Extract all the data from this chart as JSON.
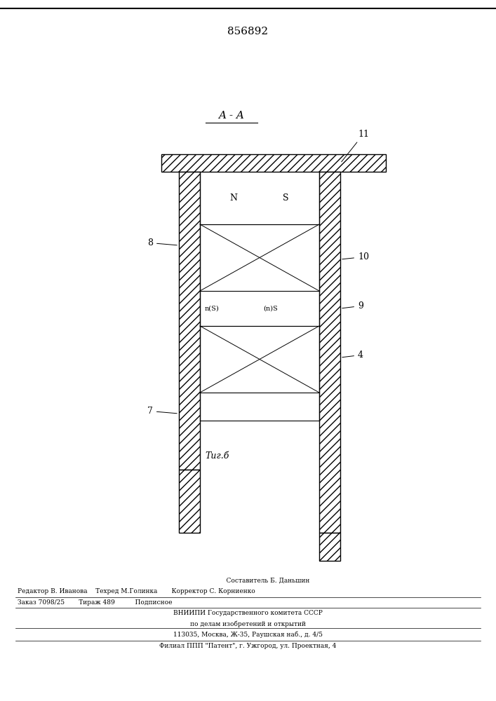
{
  "title": "856892",
  "section_label": "A - A",
  "fig_label": "Τиг.б",
  "bg_color": "#ffffff",
  "line_color": "#000000",
  "hatch_color": "#000000",
  "label_8": "8",
  "label_7": "7",
  "label_4": "4",
  "label_9": "9",
  "label_10": "10",
  "label_11": "11",
  "label_N": "N",
  "label_S": "S",
  "label_nS": "n(S)",
  "label_nS2": "(n)S",
  "footer_lines": [
    "                    Составитель Б. Даньшин",
    "Редактор В. Иванова    Техред М.Голинка       Корректор С. Корниенко",
    "Заказ 7098/25       Тираж 489          Подписное",
    "ВНИИПИ Государственного комитета СССР",
    "по делам изобретений и открытий",
    "113035, Москва, Ж-35, Раушская наб., д. 4/5",
    "Филиал ППП \"Патент\", г. Ужгород, ул. Проектная, 4"
  ]
}
